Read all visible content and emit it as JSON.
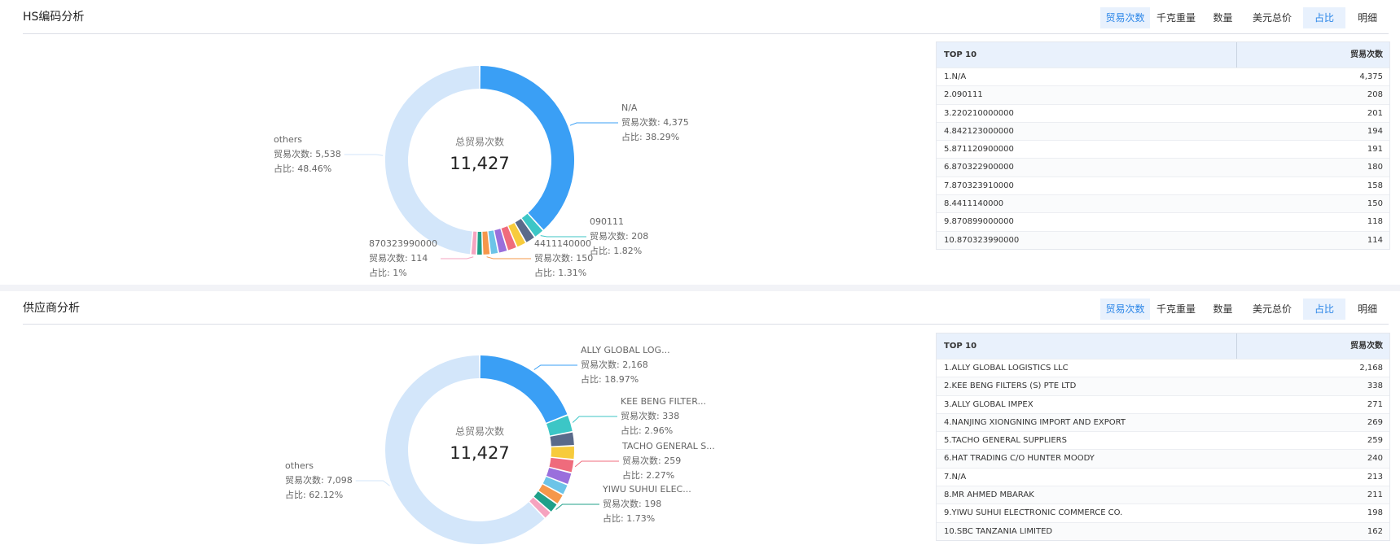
{
  "panels": [
    {
      "title": "HS编码分析",
      "buttons": [
        "贸易次数",
        "千克重量",
        "数量",
        "美元总价",
        "占比",
        "明细"
      ],
      "donut": {
        "center_label": "总贸易次数",
        "total_label": "11,427",
        "segments": [
          {
            "value": 4375,
            "color": "#3a9ff5",
            "callout": [
              "N/A",
              "贸易次数: 4,375",
              "占比: 38.29%"
            ]
          },
          {
            "value": 208,
            "color": "#3cc6c6",
            "callout": [
              "090111",
              "贸易次数: 208",
              "占比: 1.82%"
            ]
          },
          {
            "value": 201,
            "color": "#5a6a8a"
          },
          {
            "value": 194,
            "color": "#f7cb3c"
          },
          {
            "value": 191,
            "color": "#ef6b7c"
          },
          {
            "value": 180,
            "color": "#9a6fdc"
          },
          {
            "value": 158,
            "color": "#6cc4e8"
          },
          {
            "value": 150,
            "color": "#f5974a",
            "callout": [
              "4411140000",
              "贸易次数: 150",
              "占比: 1.31%"
            ]
          },
          {
            "value": 118,
            "color": "#20a08a"
          },
          {
            "value": 114,
            "color": "#f6a3bf",
            "callout": [
              "870323990000",
              "贸易次数: 114",
              "占比: 1%"
            ]
          },
          {
            "value": 5538,
            "color": "#d3e6fa",
            "callout": [
              "others",
              "贸易次数: 5,538",
              "占比: 48.46%"
            ]
          }
        ]
      },
      "table": {
        "header": [
          "TOP 10",
          "贸易次数"
        ],
        "rows": [
          [
            "1.N/A",
            "4,375"
          ],
          [
            "2.090111",
            "208"
          ],
          [
            "3.220210000000",
            "201"
          ],
          [
            "4.842123000000",
            "194"
          ],
          [
            "5.871120900000",
            "191"
          ],
          [
            "6.870322900000",
            "180"
          ],
          [
            "7.870323910000",
            "158"
          ],
          [
            "8.4411140000",
            "150"
          ],
          [
            "9.870899000000",
            "118"
          ],
          [
            "10.870323990000",
            "114"
          ]
        ]
      }
    },
    {
      "title": "供应商分析",
      "buttons": [
        "贸易次数",
        "千克重量",
        "数量",
        "美元总价",
        "占比",
        "明细"
      ],
      "donut": {
        "center_label": "总贸易次数",
        "total_label": "11,427",
        "segments": [
          {
            "value": 2168,
            "color": "#3a9ff5",
            "callout": [
              "ALLY GLOBAL LOG...",
              "贸易次数: 2,168",
              "占比: 18.97%"
            ]
          },
          {
            "value": 338,
            "color": "#3cc6c6",
            "callout": [
              "KEE BENG FILTER...",
              "贸易次数: 338",
              "占比: 2.96%"
            ]
          },
          {
            "value": 271,
            "color": "#5a6a8a"
          },
          {
            "value": 269,
            "color": "#f7cb3c"
          },
          {
            "value": 259,
            "color": "#ef6b7c",
            "callout": [
              "TACHO GENERAL S...",
              "贸易次数: 259",
              "占比: 2.27%"
            ]
          },
          {
            "value": 240,
            "color": "#9a6fdc"
          },
          {
            "value": 213,
            "color": "#6cc4e8"
          },
          {
            "value": 211,
            "color": "#f5974a"
          },
          {
            "value": 198,
            "color": "#20a08a",
            "callout": [
              "YIWU SUHUI ELEC...",
              "贸易次数: 198",
              "占比: 1.73%"
            ]
          },
          {
            "value": 162,
            "color": "#f6a3bf"
          },
          {
            "value": 7098,
            "color": "#d3e6fa",
            "callout": [
              "others",
              "贸易次数: 7,098",
              "占比: 62.12%"
            ]
          }
        ]
      },
      "table": {
        "header": [
          "TOP 10",
          "贸易次数"
        ],
        "rows": [
          [
            "1.ALLY GLOBAL LOGISTICS LLC",
            "2,168"
          ],
          [
            "2.KEE BENG FILTERS (S) PTE LTD",
            "338"
          ],
          [
            "3.ALLY GLOBAL IMPEX",
            "271"
          ],
          [
            "4.NANJING XIONGNING IMPORT AND EXPORT",
            "269"
          ],
          [
            "5.TACHO GENERAL SUPPLIERS",
            "259"
          ],
          [
            "6.HAT TRADING C/O HUNTER MOODY",
            "240"
          ],
          [
            "7.N/A",
            "213"
          ],
          [
            "8.MR AHMED MBARAK",
            "211"
          ],
          [
            "9.YIWU SUHUI ELECTRONIC COMMERCE CO.",
            "198"
          ],
          [
            "10.SBC TANZANIA LIMITED",
            "162"
          ]
        ]
      }
    }
  ]
}
